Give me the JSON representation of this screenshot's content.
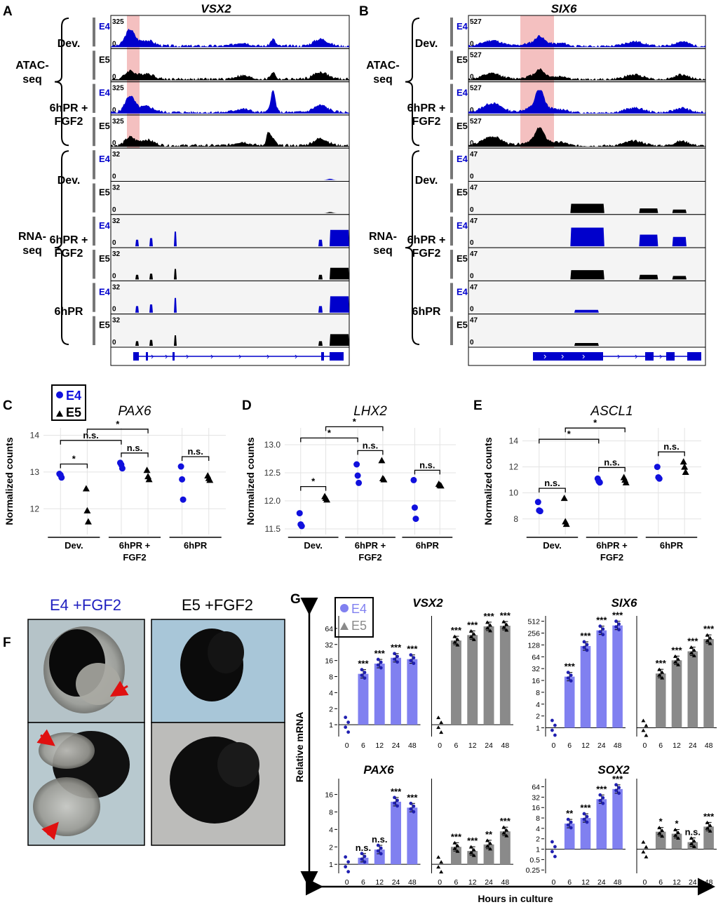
{
  "colors": {
    "e4_blue": "#0000cc",
    "e4_light": "#8080f0",
    "e5_gray": "#8a8a8a",
    "highlight": "#f4c0c0",
    "track_bg": "#f4f4f4"
  },
  "panels": {
    "A": {
      "label": "A",
      "gene": "VSX2",
      "atac_label": "ATAC-\nseq",
      "rna_label": "RNA-\nseq",
      "tracks": [
        {
          "assay": "ATAC",
          "group": "Dev.",
          "stage": "E4",
          "scale": "325",
          "show_zero": "0"
        },
        {
          "assay": "ATAC",
          "group": "Dev.",
          "stage": "E5",
          "scale": "",
          "show_zero": "0"
        },
        {
          "assay": "ATAC",
          "group": "6hPR + FGF2",
          "stage": "E4",
          "scale": "325",
          "show_zero": "0"
        },
        {
          "assay": "ATAC",
          "group": "6hPR + FGF2",
          "stage": "E5",
          "scale": "325",
          "show_zero": "0"
        },
        {
          "assay": "RNA",
          "group": "Dev.",
          "stage": "E4",
          "scale": "32",
          "show_zero": "0"
        },
        {
          "assay": "RNA",
          "group": "Dev.",
          "stage": "E5",
          "scale": "32",
          "show_zero": "0"
        },
        {
          "assay": "RNA",
          "group": "6hPR + FGF2",
          "stage": "E4",
          "scale": "32",
          "show_zero": "0"
        },
        {
          "assay": "RNA",
          "group": "6hPR + FGF2",
          "stage": "E5",
          "scale": "32",
          "show_zero": "0"
        },
        {
          "assay": "RNA",
          "group": "6hPR",
          "stage": "E4",
          "scale": "32",
          "show_zero": "0"
        },
        {
          "assay": "RNA",
          "group": "6hPR",
          "stage": "E5",
          "scale": "32",
          "show_zero": "0"
        }
      ],
      "group_labels": [
        "Dev.",
        "6hPR +\nFGF2",
        "Dev.",
        "6hPR +\nFGF2",
        "6hPR"
      ]
    },
    "B": {
      "label": "B",
      "gene": "SIX6",
      "atac_label": "ATAC-\nseq",
      "rna_label": "RNA-\nseq",
      "tracks": [
        {
          "assay": "ATAC",
          "group": "Dev.",
          "stage": "E4",
          "scale": "527",
          "show_zero": "0"
        },
        {
          "assay": "ATAC",
          "group": "Dev.",
          "stage": "E5",
          "scale": "527",
          "show_zero": "0"
        },
        {
          "assay": "ATAC",
          "group": "6hPR + FGF2",
          "stage": "E4",
          "scale": "527",
          "show_zero": "0"
        },
        {
          "assay": "ATAC",
          "group": "6hPR + FGF2",
          "stage": "E5",
          "scale": "527",
          "show_zero": "0"
        },
        {
          "assay": "RNA",
          "group": "Dev.",
          "stage": "E4",
          "scale": "47",
          "show_zero": "0"
        },
        {
          "assay": "RNA",
          "group": "Dev.",
          "stage": "E5",
          "scale": "47",
          "show_zero": "0"
        },
        {
          "assay": "RNA",
          "group": "6hPR + FGF2",
          "stage": "E4",
          "scale": "47",
          "show_zero": "0"
        },
        {
          "assay": "RNA",
          "group": "6hPR + FGF2",
          "stage": "E5",
          "scale": "47",
          "show_zero": "0"
        },
        {
          "assay": "RNA",
          "group": "6hPR",
          "stage": "E4",
          "scale": "47",
          "show_zero": "0"
        },
        {
          "assay": "RNA",
          "group": "6hPR",
          "stage": "E5",
          "scale": "47",
          "show_zero": "0"
        }
      ],
      "group_labels": [
        "Dev.",
        "6hPR +\nFGF2",
        "Dev.",
        "6hPR +\nFGF2",
        "6hPR"
      ]
    },
    "F": {
      "label": "F",
      "titles": [
        "E4 +FGF2",
        "E5 +FGF2"
      ]
    }
  },
  "legend_CDE": {
    "e4": "E4",
    "e5": "E5"
  },
  "legend_G": {
    "e4": "E4",
    "e5": "E5"
  },
  "chart_data": [
    {
      "panel": "C",
      "type": "scatter",
      "title": "PAX6",
      "ylabel": "Normalized counts",
      "ylim": [
        11.3,
        14.2
      ],
      "yticks": [
        12,
        13,
        14
      ],
      "categories": [
        "Dev.",
        "6hPR +\nFGF2",
        "6hPR"
      ],
      "series": [
        {
          "name": "E4",
          "values": [
            [
              12.95,
              12.92,
              12.85
            ],
            [
              13.25,
              13.2,
              13.1
            ],
            [
              13.15,
              12.8,
              12.25
            ]
          ]
        },
        {
          "name": "E5",
          "values": [
            [
              12.55,
              11.95,
              11.65
            ],
            [
              13.05,
              12.88,
              12.8
            ],
            [
              12.9,
              12.83,
              12.78
            ]
          ]
        }
      ],
      "comparisons": [
        {
          "from": [
            0,
            "E4"
          ],
          "to": [
            0,
            "E5"
          ],
          "label": "*"
        },
        {
          "from": [
            0,
            "E4"
          ],
          "to": [
            1,
            "E4"
          ],
          "label": "n.s."
        },
        {
          "from": [
            1,
            "E4"
          ],
          "to": [
            1,
            "E5"
          ],
          "label": "n.s."
        },
        {
          "from": [
            0,
            "E5"
          ],
          "to": [
            1,
            "E5"
          ],
          "label": "*"
        },
        {
          "from": [
            2,
            "E4"
          ],
          "to": [
            2,
            "E5"
          ],
          "label": "n.s."
        }
      ]
    },
    {
      "panel": "D",
      "type": "scatter",
      "title": "LHX2",
      "ylabel": "Normalized counts",
      "ylim": [
        11.4,
        13.3
      ],
      "yticks": [
        11.5,
        12.0,
        12.5,
        13.0
      ],
      "categories": [
        "Dev.",
        "6hPR +\nFGF2",
        "6hPR"
      ],
      "series": [
        {
          "name": "E4",
          "values": [
            [
              11.78,
              11.58,
              11.55
            ],
            [
              12.65,
              12.45,
              12.32
            ],
            [
              12.37,
              11.88,
              11.68
            ]
          ]
        },
        {
          "name": "E5",
          "values": [
            [
              12.08,
              12.05,
              12.02
            ],
            [
              12.72,
              12.4,
              12.38
            ],
            [
              12.3,
              12.28,
              12.27
            ]
          ]
        }
      ],
      "comparisons": [
        {
          "from": [
            0,
            "E4"
          ],
          "to": [
            0,
            "E5"
          ],
          "label": "*"
        },
        {
          "from": [
            0,
            "E4"
          ],
          "to": [
            1,
            "E4"
          ],
          "label": "*"
        },
        {
          "from": [
            1,
            "E4"
          ],
          "to": [
            1,
            "E5"
          ],
          "label": "n.s."
        },
        {
          "from": [
            0,
            "E5"
          ],
          "to": [
            1,
            "E5"
          ],
          "label": "*"
        },
        {
          "from": [
            2,
            "E4"
          ],
          "to": [
            2,
            "E5"
          ],
          "label": "n.s."
        }
      ]
    },
    {
      "panel": "E",
      "type": "scatter",
      "title": "ASCL1",
      "ylabel": "Normalized counts",
      "ylim": [
        6.8,
        15.0
      ],
      "yticks": [
        8,
        10,
        12,
        14
      ],
      "categories": [
        "Dev.",
        "6hPR +\nFGF2",
        "6hPR"
      ],
      "series": [
        {
          "name": "E4",
          "values": [
            [
              9.3,
              8.65,
              8.6
            ],
            [
              11.1,
              10.9,
              10.8
            ],
            [
              12.0,
              11.2,
              11.1
            ]
          ]
        },
        {
          "name": "E5",
          "values": [
            [
              9.6,
              7.8,
              7.6
            ],
            [
              11.2,
              11.0,
              10.8
            ],
            [
              12.4,
              12.0,
              11.6
            ]
          ]
        }
      ],
      "comparisons": [
        {
          "from": [
            0,
            "E4"
          ],
          "to": [
            0,
            "E5"
          ],
          "label": "n.s."
        },
        {
          "from": [
            0,
            "E4"
          ],
          "to": [
            1,
            "E4"
          ],
          "label": "*"
        },
        {
          "from": [
            1,
            "E4"
          ],
          "to": [
            1,
            "E5"
          ],
          "label": "n.s."
        },
        {
          "from": [
            0,
            "E5"
          ],
          "to": [
            1,
            "E5"
          ],
          "label": "*"
        },
        {
          "from": [
            2,
            "E4"
          ],
          "to": [
            2,
            "E5"
          ],
          "label": "n.s."
        }
      ]
    },
    {
      "panel": "G",
      "type": "bar",
      "ylabel": "Relative mRNA",
      "xlabel": "Hours in culture",
      "x": [
        "0",
        "6",
        "12",
        "24",
        "48"
      ],
      "plots": [
        {
          "gene": "VSX2",
          "yscale": "log2",
          "ylim": [
            0.6,
            110
          ],
          "yticks": [
            "1",
            "2",
            "4",
            "8",
            "16",
            "32",
            "64"
          ],
          "ytickvals": [
            1,
            2,
            4,
            8,
            16,
            32,
            64
          ],
          "series": [
            {
              "name": "E4",
              "values": [
                1,
                9,
                14,
                18,
                17
              ],
              "sig": [
                "",
                "***",
                "***",
                "***",
                "***"
              ]
            },
            {
              "name": "E5",
              "values": [
                1,
                38,
                48,
                70,
                72
              ],
              "sig": [
                "",
                "***",
                "***",
                "***",
                "***"
              ]
            }
          ]
        },
        {
          "gene": "SIX6",
          "yscale": "log2",
          "ylim": [
            0.6,
            700
          ],
          "yticks": [
            "1",
            "2",
            "4",
            "8",
            "16",
            "32",
            "64",
            "128",
            "256",
            "512"
          ],
          "ytickvals": [
            1,
            2,
            4,
            8,
            16,
            32,
            64,
            128,
            256,
            512
          ],
          "series": [
            {
              "name": "E4",
              "values": [
                1,
                20,
                120,
                300,
                400
              ],
              "sig": [
                "",
                "***",
                "***",
                "***",
                "***"
              ]
            },
            {
              "name": "E5",
              "values": [
                1,
                24,
                52,
                88,
                180
              ],
              "sig": [
                "",
                "***",
                "***",
                "***",
                "***"
              ]
            }
          ]
        },
        {
          "gene": "PAX6",
          "yscale": "log2",
          "ylim": [
            0.7,
            30
          ],
          "yticks": [
            "1",
            "2",
            "4",
            "8",
            "16"
          ],
          "ytickvals": [
            1,
            2,
            4,
            8,
            16
          ],
          "series": [
            {
              "name": "E4",
              "values": [
                1,
                1.3,
                1.8,
                12,
                9.5
              ],
              "sig": [
                "",
                "n.s.",
                "n.s.",
                "***",
                "***"
              ]
            },
            {
              "name": "E5",
              "values": [
                1,
                2.0,
                1.7,
                2.2,
                3.7
              ],
              "sig": [
                "",
                "***",
                "***",
                "**",
                "***"
              ]
            }
          ]
        },
        {
          "gene": "SOX2",
          "yscale": "log2",
          "ylim": [
            0.2,
            110
          ],
          "yticks": [
            "0.25",
            "0.5",
            "1",
            "2",
            "4",
            "8",
            "16",
            "32",
            "64"
          ],
          "ytickvals": [
            0.25,
            0.5,
            1,
            2,
            4,
            8,
            16,
            32,
            64
          ],
          "series": [
            {
              "name": "E4",
              "values": [
                1,
                5.5,
                8,
                28,
                55
              ],
              "sig": [
                "",
                "**",
                "***",
                "***",
                "***"
              ]
            },
            {
              "name": "E5",
              "values": [
                1,
                3.2,
                2.8,
                1.6,
                4.5
              ],
              "sig": [
                "",
                "*",
                "*",
                "n.s.",
                "***"
              ]
            }
          ]
        }
      ]
    }
  ]
}
